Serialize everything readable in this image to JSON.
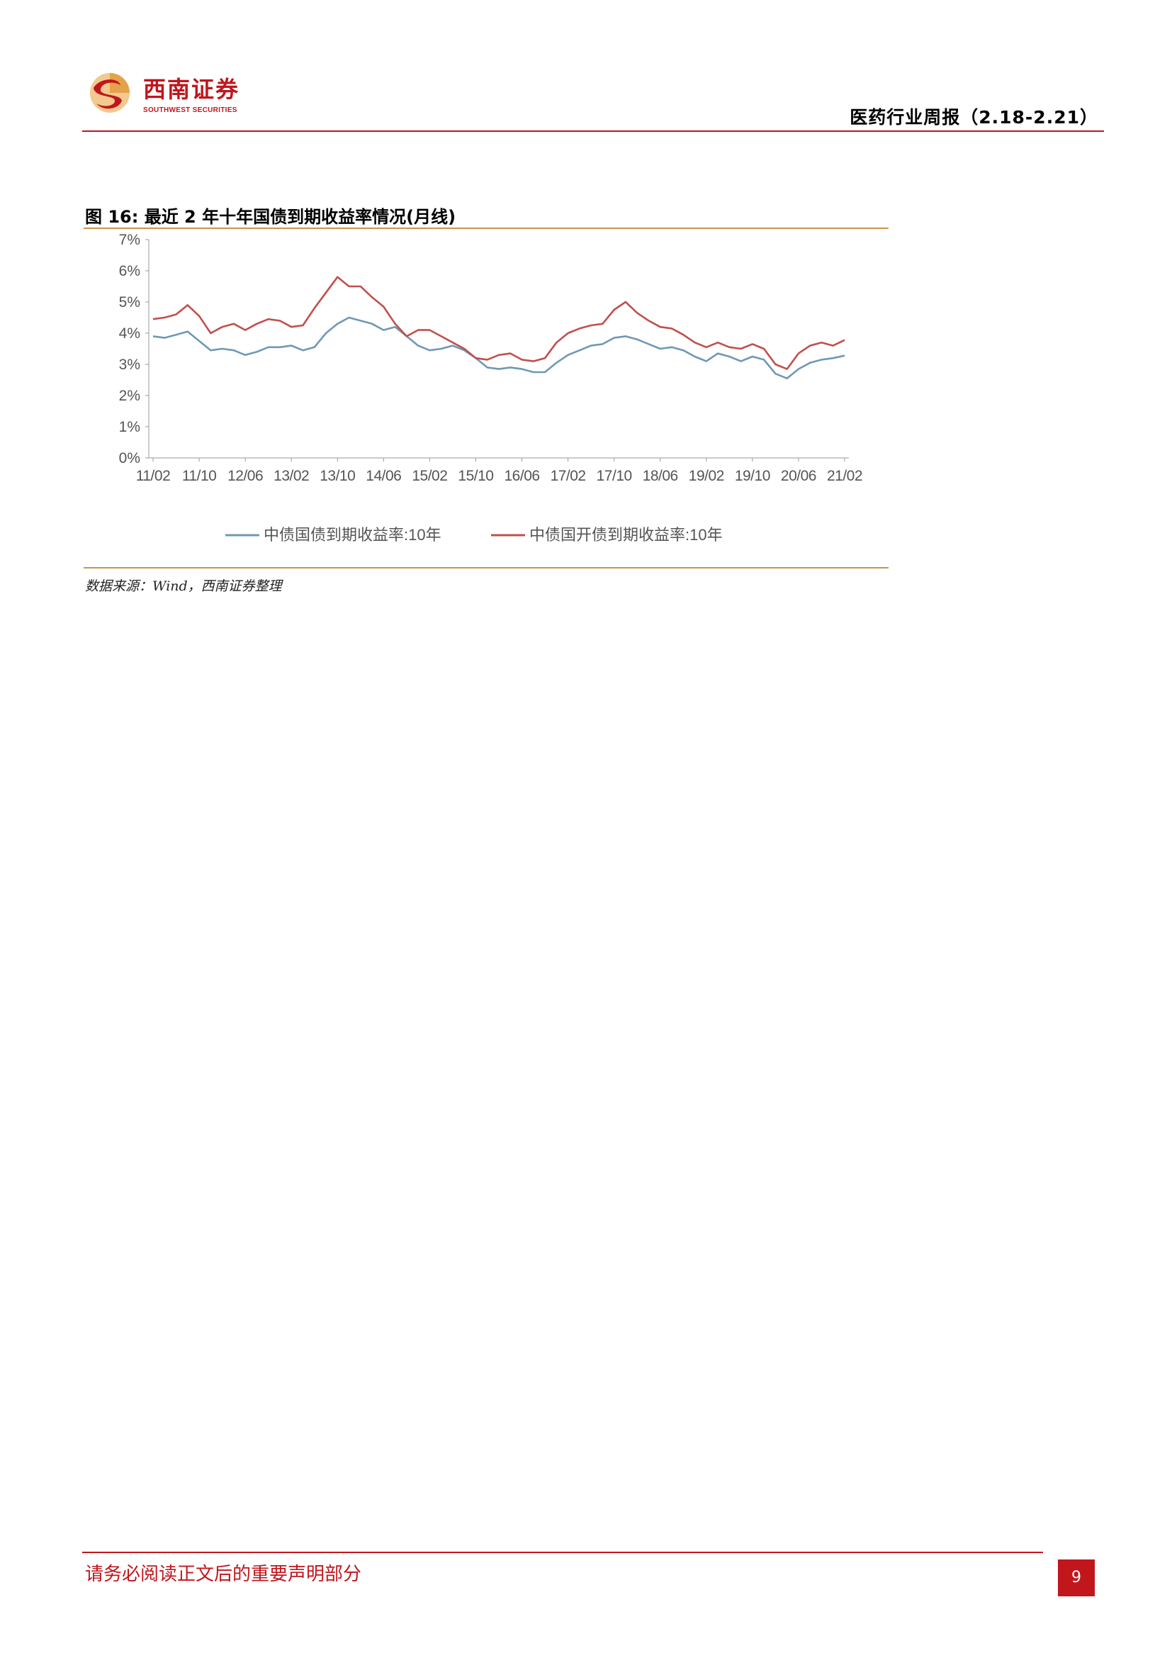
{
  "header": {
    "logo_cn": "西南证券",
    "logo_en": "SOUTHWEST SECURITIES",
    "report_title": "医药行业周报（2.18-2.21）"
  },
  "figure": {
    "caption": "图 16:  最近 2 年十年国债到期收益率情况(月线)",
    "source": "数据来源：Wind，西南证券整理"
  },
  "chart_data": {
    "type": "line",
    "title": "",
    "xlabel": "",
    "ylabel": "",
    "ylim": [
      0,
      7
    ],
    "yticks": [
      "0%",
      "1%",
      "2%",
      "3%",
      "4%",
      "5%",
      "6%",
      "7%"
    ],
    "xticks": [
      "11/02",
      "11/10",
      "12/06",
      "13/02",
      "13/10",
      "14/06",
      "15/02",
      "15/10",
      "16/06",
      "17/02",
      "17/10",
      "18/06",
      "19/02",
      "19/10",
      "20/06",
      "21/02"
    ],
    "x": [
      "11/02",
      "11/04",
      "11/06",
      "11/08",
      "11/10",
      "11/12",
      "12/02",
      "12/04",
      "12/06",
      "12/08",
      "12/10",
      "12/12",
      "13/02",
      "13/04",
      "13/06",
      "13/08",
      "13/10",
      "13/12",
      "14/02",
      "14/04",
      "14/06",
      "14/08",
      "14/10",
      "14/12",
      "15/02",
      "15/04",
      "15/06",
      "15/08",
      "15/10",
      "15/12",
      "16/02",
      "16/04",
      "16/06",
      "16/08",
      "16/10",
      "16/12",
      "17/02",
      "17/04",
      "17/06",
      "17/08",
      "17/10",
      "17/12",
      "18/02",
      "18/04",
      "18/06",
      "18/08",
      "18/10",
      "18/12",
      "19/02",
      "19/04",
      "19/06",
      "19/08",
      "19/10",
      "19/12",
      "20/02",
      "20/04",
      "20/06",
      "20/08",
      "20/10",
      "20/12",
      "21/02"
    ],
    "grid": false,
    "legend": "bottom",
    "series": [
      {
        "name": "中债国债到期收益率:10年",
        "color": "#6f98b6",
        "values": [
          3.9,
          3.85,
          3.95,
          4.05,
          3.75,
          3.45,
          3.5,
          3.45,
          3.3,
          3.4,
          3.55,
          3.55,
          3.6,
          3.45,
          3.55,
          4.0,
          4.3,
          4.5,
          4.4,
          4.3,
          4.1,
          4.2,
          3.9,
          3.6,
          3.45,
          3.5,
          3.6,
          3.45,
          3.2,
          2.9,
          2.85,
          2.9,
          2.85,
          2.75,
          2.75,
          3.05,
          3.3,
          3.45,
          3.6,
          3.65,
          3.85,
          3.9,
          3.8,
          3.65,
          3.5,
          3.55,
          3.45,
          3.25,
          3.1,
          3.35,
          3.25,
          3.1,
          3.25,
          3.15,
          2.7,
          2.55,
          2.85,
          3.05,
          3.15,
          3.2,
          3.28
        ]
      },
      {
        "name": "中债国开债到期收益率:10年",
        "color": "#c0504d",
        "values": [
          4.45,
          4.5,
          4.6,
          4.9,
          4.55,
          4.0,
          4.2,
          4.3,
          4.1,
          4.3,
          4.45,
          4.4,
          4.2,
          4.25,
          4.8,
          5.3,
          5.8,
          5.5,
          5.5,
          5.15,
          4.85,
          4.3,
          3.9,
          4.1,
          4.1,
          3.9,
          3.7,
          3.5,
          3.2,
          3.15,
          3.3,
          3.35,
          3.15,
          3.1,
          3.2,
          3.7,
          4.0,
          4.15,
          4.25,
          4.3,
          4.75,
          5.0,
          4.65,
          4.4,
          4.2,
          4.15,
          3.95,
          3.7,
          3.55,
          3.7,
          3.55,
          3.5,
          3.65,
          3.5,
          3.0,
          2.85,
          3.35,
          3.6,
          3.7,
          3.6,
          3.78
        ]
      }
    ]
  },
  "footer": {
    "disclaimer": "请务必阅读正文后的重要声明部分",
    "page_number": "9"
  },
  "colors": {
    "brand_red": "#c0161c",
    "figure_rule": "#c8954a",
    "axis": "#999999",
    "tick_text": "#555555"
  }
}
